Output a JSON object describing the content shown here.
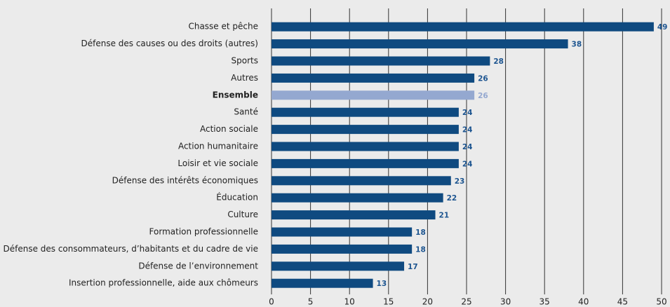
{
  "chart_data": {
    "type": "bar",
    "orientation": "horizontal",
    "categories": [
      "Chasse et pêche",
      "Défense des causes ou des droits (autres)",
      "Sports",
      "Autres",
      "Ensemble",
      "Santé",
      "Action sociale",
      "Action humanitaire",
      "Loisir et vie sociale",
      "Défense des intérêts économiques",
      "Éducation",
      "Culture",
      "Formation professionnelle",
      "Défense des consommateurs, d’habitants et du cadre de vie",
      "Défense de l’environnement",
      "Insertion professionnelle, aide aux chômeurs"
    ],
    "values": [
      49,
      38,
      28,
      26,
      26,
      24,
      24,
      24,
      24,
      23,
      22,
      21,
      18,
      18,
      17,
      13
    ],
    "color": "#0f4a80",
    "colors": [
      "#0f4a80",
      "#0f4a80",
      "#0f4a80",
      "#0f4a80",
      "#94a8d0",
      "#0f4a80",
      "#0f4a80",
      "#0f4a80",
      "#0f4a80",
      "#0f4a80",
      "#0f4a80",
      "#0f4a80",
      "#0f4a80",
      "#0f4a80",
      "#0f4a80",
      "#0f4a80"
    ],
    "xlim": [
      0,
      50
    ],
    "xticks": [
      0,
      5,
      10,
      15,
      20,
      25,
      30,
      35,
      40,
      45,
      50
    ],
    "grid": true
  }
}
